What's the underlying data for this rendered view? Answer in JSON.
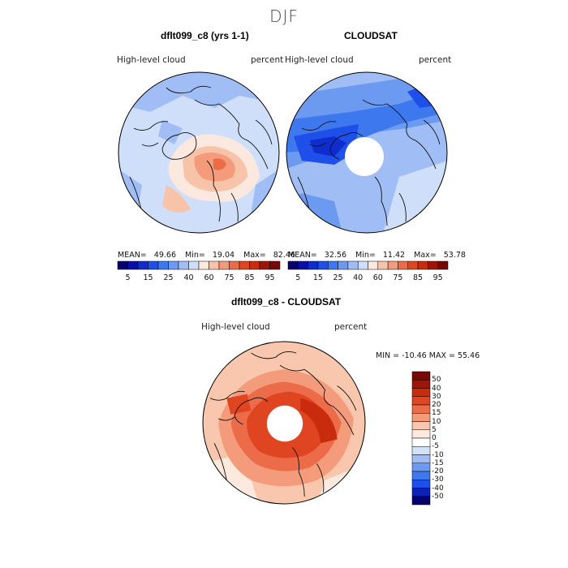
{
  "season": "DJF",
  "panels": {
    "model": {
      "title": "dflt099_c8 (yrs 1-1)",
      "variable": "High-level cloud",
      "units": "percent"
    },
    "obs": {
      "title": "CLOUDSAT",
      "variable": "High-level cloud",
      "units": "percent"
    },
    "diff": {
      "title": "dflt099_c8 - CLOUDSAT",
      "variable": "High-level cloud",
      "units": "percent"
    }
  },
  "stats": {
    "model": {
      "mean_label": "MEAN=",
      "mean": "49.66",
      "min_label": "Min=",
      "min": "19.04",
      "max_label": "Max=",
      "max": "82.46"
    },
    "obs": {
      "mean_label": "MEAN=",
      "mean": "32.56",
      "min_label": "Min=",
      "min": "11.42",
      "max_label": "Max=",
      "max": "53.78"
    },
    "diff": {
      "text": "MIN = -10.46  MAX =  55.46"
    }
  },
  "abs_colorbar": {
    "colors": [
      "#08006e",
      "#0a0fa3",
      "#0f2ccc",
      "#1e4fe8",
      "#3e78ee",
      "#6c9af0",
      "#a0bef5",
      "#cfdff9",
      "#fbe9df",
      "#f7c3a9",
      "#f39b7b",
      "#ec6c4a",
      "#e04522",
      "#c92b0d",
      "#a01407",
      "#760903"
    ],
    "tick_labels": [
      "5",
      "15",
      "25",
      "40",
      "60",
      "75",
      "85",
      "95"
    ]
  },
  "diff_colorbar": {
    "colors": [
      "#08006e",
      "#0c22b5",
      "#1e4fe8",
      "#3e78ee",
      "#6c9af0",
      "#a0bef5",
      "#d2e2fa",
      "#ffffff",
      "#fde9dd",
      "#f9c7ad",
      "#f39b7b",
      "#ec6c4a",
      "#e04522",
      "#c92b0d",
      "#a01407",
      "#760903"
    ],
    "tick_labels": [
      "50",
      "40",
      "30",
      "20",
      "15",
      "10",
      "5",
      "0",
      "-5",
      "-10",
      "-15",
      "-20",
      "-30",
      "-40",
      "-50"
    ]
  },
  "map_colors": {
    "model_base": "#cfdff9",
    "obs_base": "#a0bef5",
    "diff_base": "#f39b7b",
    "land_outline": "#111111"
  }
}
